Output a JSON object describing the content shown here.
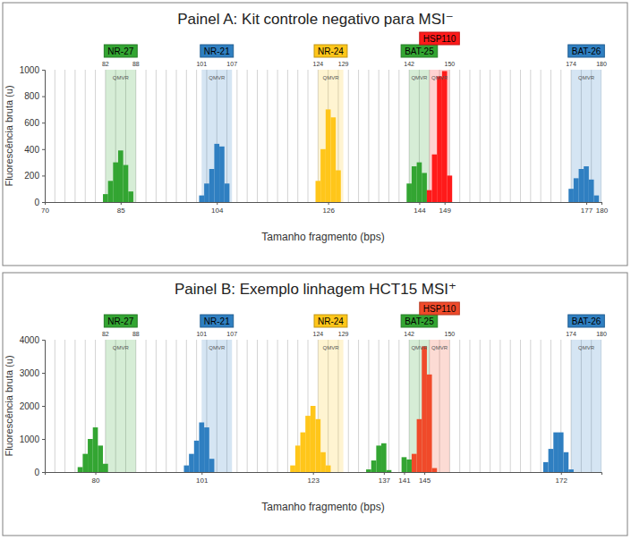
{
  "chart_data": [
    {
      "type": "bar",
      "title": "Painel A: Kit controle negativo para MSI⁻",
      "x_label": "Tamanho fragmento (bps)",
      "y_label": "Fluorescência bruta (u)",
      "xlim": [
        70,
        180
      ],
      "xticks": [
        70,
        85,
        104,
        126,
        144,
        149,
        177,
        180
      ],
      "ylim": [
        0,
        1000
      ],
      "yticks": [
        0,
        200,
        400,
        600,
        800,
        1000
      ],
      "grid": true,
      "series": [
        {
          "name": "NR-27",
          "color": "#33a532",
          "range": [
            82,
            88
          ],
          "range_labels": [
            82,
            88
          ],
          "region_label": "QMVR",
          "x": [
            82,
            83,
            84,
            85,
            86,
            87
          ],
          "values": [
            60,
            160,
            300,
            390,
            280,
            80
          ]
        },
        {
          "name": "NR-21",
          "color": "#2f7fc1",
          "range": [
            101,
            107
          ],
          "range_labels": [
            101,
            107
          ],
          "region_label": "QMVR",
          "x": [
            101,
            102,
            103,
            104,
            105,
            106
          ],
          "values": [
            50,
            140,
            250,
            440,
            420,
            140
          ]
        },
        {
          "name": "NR-24",
          "color": "#ffc61a",
          "range": [
            124,
            129
          ],
          "range_labels": [
            124,
            129
          ],
          "region_label": "QMVR",
          "x": [
            124,
            125,
            126,
            127,
            128
          ],
          "values": [
            160,
            400,
            700,
            640,
            240
          ]
        },
        {
          "name": "BAT-25",
          "color": "#33a532",
          "range": [
            142,
            146
          ],
          "range_labels": [
            142,
            null
          ],
          "region_label": "QMVR",
          "x": [
            142,
            143,
            144,
            145
          ],
          "values": [
            140,
            270,
            300,
            220
          ]
        },
        {
          "name": "HSP110",
          "color": "#ff1a1a",
          "range": [
            146,
            150
          ],
          "range_labels": [
            null,
            150
          ],
          "region_label": "QMVR",
          "x": [
            146,
            147,
            148,
            149,
            150
          ],
          "values": [
            90,
            360,
            950,
            990,
            200
          ]
        },
        {
          "name": "BAT-26",
          "color": "#2f7fc1",
          "range": [
            174,
            180
          ],
          "range_labels": [
            174,
            180
          ],
          "region_label": "QMVR",
          "x": [
            174,
            175,
            176,
            177,
            178,
            179
          ],
          "values": [
            100,
            180,
            250,
            270,
            170,
            50
          ]
        }
      ]
    },
    {
      "type": "bar",
      "title": "Painel B: Exemplo linhagem HCT15 MSI⁺",
      "x_label": "Tamanho fragmento (bps)",
      "y_label": "Fluorescência bruta (u)",
      "xlim": [
        70,
        180
      ],
      "xticks": [
        80,
        101,
        123,
        137,
        141,
        145,
        172
      ],
      "ylim": [
        0,
        4000
      ],
      "yticks": [
        0,
        1000,
        2000,
        3000,
        4000
      ],
      "grid": true,
      "series": [
        {
          "name": "NR-27",
          "color": "#33a532",
          "range": [
            82,
            88
          ],
          "range_labels": [
            82,
            88
          ],
          "region_label": "QMVR",
          "x": [
            77,
            78,
            79,
            80,
            81,
            82
          ],
          "values": [
            150,
            550,
            1000,
            1350,
            800,
            250
          ]
        },
        {
          "name": "NR-21",
          "color": "#2f7fc1",
          "range": [
            101,
            107
          ],
          "range_labels": [
            101,
            107
          ],
          "region_label": "QMVR",
          "x": [
            98,
            99,
            100,
            101,
            102,
            103
          ],
          "values": [
            200,
            550,
            950,
            1500,
            1350,
            400
          ]
        },
        {
          "name": "NR-24",
          "color": "#ffc61a",
          "range": [
            124,
            129
          ],
          "range_labels": [
            124,
            129
          ],
          "region_label": "QMVR",
          "x": [
            119,
            120,
            121,
            122,
            123,
            124,
            125,
            126
          ],
          "values": [
            200,
            800,
            1200,
            1700,
            2000,
            1600,
            600,
            200
          ]
        },
        {
          "name": "BAT-25",
          "color": "#33a532",
          "range": [
            142,
            146
          ],
          "range_labels": [
            142,
            null
          ],
          "region_label": "QMVR",
          "x": [
            134,
            135,
            136,
            137,
            138,
            141,
            142
          ],
          "values": [
            80,
            350,
            800,
            870,
            60,
            450,
            380
          ]
        },
        {
          "name": "HSP110",
          "color": "#f04a2a",
          "range": [
            146,
            150
          ],
          "range_labels": [
            null,
            150
          ],
          "region_label": "QMVR",
          "x": [
            143,
            144,
            145,
            146,
            147
          ],
          "values": [
            550,
            1600,
            3800,
            2950,
            120
          ]
        },
        {
          "name": "BAT-26",
          "color": "#2f7fc1",
          "range": [
            174,
            180
          ],
          "range_labels": [
            174,
            180
          ],
          "region_label": "QMVR",
          "x": [
            169,
            170,
            171,
            172,
            173,
            174
          ],
          "values": [
            300,
            700,
            1200,
            1200,
            600,
            80
          ]
        }
      ]
    }
  ]
}
